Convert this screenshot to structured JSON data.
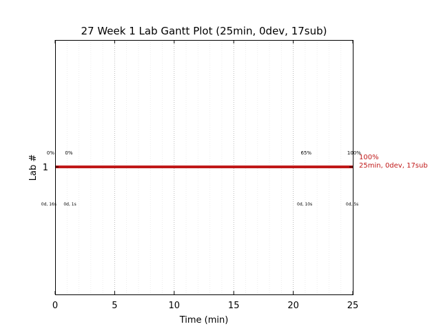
{
  "chart_data": {
    "type": "gantt",
    "title": "27 Week 1 Lab Gantt Plot (25min, 0dev, 17sub)",
    "xlabel": "Time (min)",
    "ylabel": "Lab #",
    "xlim": [
      0,
      25
    ],
    "x_ticks": [
      "0",
      "5",
      "10",
      "15",
      "20",
      "25"
    ],
    "x_tick_values": [
      0,
      5,
      10,
      15,
      20,
      25
    ],
    "minor_grid_step": 1,
    "categories": [
      "1"
    ],
    "bars": [
      {
        "lab": "1",
        "start": 0,
        "end": 25,
        "color": "#c01818"
      }
    ],
    "progress_labels": [
      {
        "x": 0.0,
        "text": "0%"
      },
      {
        "x": 0.6,
        "text": "0%"
      },
      {
        "x": 20.4,
        "text": "65%"
      },
      {
        "x": 24.3,
        "text": "100%"
      }
    ],
    "duration_labels": [
      {
        "x": 0.0,
        "text": "0d, 16s"
      },
      {
        "x": 0.6,
        "text": "0d, 1s"
      },
      {
        "x": 20.2,
        "text": "0d, 10s"
      },
      {
        "x": 24.3,
        "text": "0d, 5s"
      }
    ],
    "end_status": {
      "lines": [
        "100%",
        "25min, 0dev, 17sub"
      ],
      "color": "#c01818"
    }
  }
}
